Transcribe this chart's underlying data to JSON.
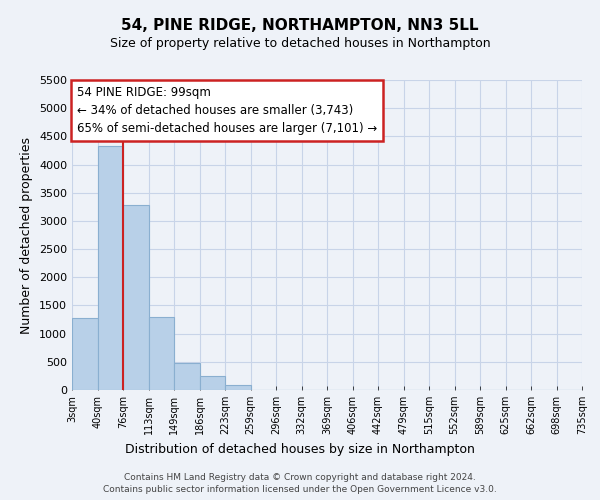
{
  "title": "54, PINE RIDGE, NORTHAMPTON, NN3 5LL",
  "subtitle": "Size of property relative to detached houses in Northampton",
  "xlabel": "Distribution of detached houses by size in Northampton",
  "ylabel": "Number of detached properties",
  "bar_values": [
    1270,
    4330,
    3290,
    1290,
    480,
    240,
    90,
    0,
    0,
    0,
    0,
    0,
    0,
    0,
    0,
    0,
    0,
    0,
    0,
    0
  ],
  "bar_labels": [
    "3sqm",
    "40sqm",
    "76sqm",
    "113sqm",
    "149sqm",
    "186sqm",
    "223sqm",
    "259sqm",
    "296sqm",
    "332sqm",
    "369sqm",
    "406sqm",
    "442sqm",
    "479sqm",
    "515sqm",
    "552sqm",
    "589sqm",
    "625sqm",
    "662sqm",
    "698sqm",
    "735sqm"
  ],
  "bar_color": "#b8d0e8",
  "bar_edge_color": "#8aafd0",
  "vline_x": 2,
  "vline_color": "#cc2222",
  "ylim": [
    0,
    5500
  ],
  "yticks": [
    0,
    500,
    1000,
    1500,
    2000,
    2500,
    3000,
    3500,
    4000,
    4500,
    5000,
    5500
  ],
  "annotation_line1": "54 PINE RIDGE: 99sqm",
  "annotation_line2": "← 34% of detached houses are smaller (3,743)",
  "annotation_line3": "65% of semi-detached houses are larger (7,101) →",
  "annotation_box_color": "#ffffff",
  "annotation_box_edge": "#cc2222",
  "footer_line1": "Contains HM Land Registry data © Crown copyright and database right 2024.",
  "footer_line2": "Contains public sector information licensed under the Open Government Licence v3.0.",
  "grid_color": "#c8d4e8",
  "background_color": "#eef2f8"
}
